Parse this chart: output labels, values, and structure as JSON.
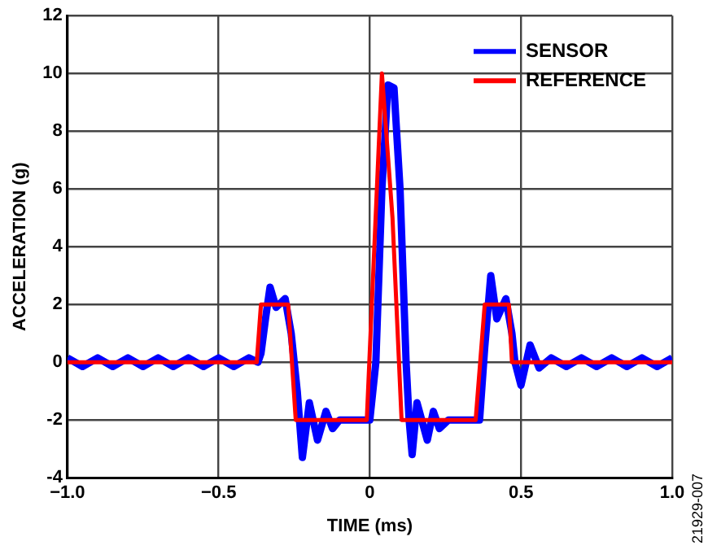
{
  "chart_data": {
    "type": "line",
    "xlabel": "TIME (ms)",
    "ylabel": "ACCELERATION (g)",
    "annotations": [
      "21929-007"
    ],
    "xlim": [
      -1.0,
      1.0
    ],
    "xticks": [
      {
        "value": -1,
        "label": "−1.0"
      },
      {
        "value": -0.5,
        "label": "−0.5"
      },
      0,
      0.5,
      {
        "value": 1,
        "label": "1.0"
      }
    ],
    "ylim": [
      -4,
      12
    ],
    "yticks": [
      -4,
      -2,
      0,
      2,
      4,
      6,
      8,
      10,
      12
    ],
    "grid": true,
    "legend": "top right",
    "marker": "none",
    "line_style": "solid",
    "series": [
      {
        "name": "SENSOR",
        "color": "#0000ff",
        "x": [
          -1,
          -0.95,
          -0.9,
          -0.85,
          -0.8,
          -0.75,
          -0.7,
          -0.65,
          -0.6,
          -0.55,
          -0.5,
          -0.45,
          -0.4,
          -0.37,
          -0.36,
          -0.345,
          -0.33,
          -0.31,
          -0.28,
          -0.26,
          -0.24,
          -0.223,
          -0.2,
          -0.173,
          -0.145,
          -0.123,
          -0.1,
          -0.05,
          0,
          0.02,
          0.04,
          0.06,
          0.08,
          0.1,
          0.12,
          0.13,
          0.14,
          0.156,
          0.19,
          0.21,
          0.23,
          0.26,
          0.3,
          0.35,
          0.363,
          0.38,
          0.4,
          0.42,
          0.45,
          0.47,
          0.48,
          0.5,
          0.53,
          0.56,
          0.6,
          0.65,
          0.7,
          0.75,
          0.8,
          0.85,
          0.9,
          0.95,
          1
        ],
        "values": [
          0.15,
          -0.15,
          0.15,
          -0.15,
          0.15,
          -0.15,
          0.15,
          -0.15,
          0.15,
          -0.15,
          0.15,
          -0.15,
          0.15,
          0,
          0.3,
          1.5,
          2.6,
          1.9,
          2.2,
          1,
          -1,
          -3.3,
          -1.4,
          -2.7,
          -1.7,
          -2.3,
          -2,
          -2,
          -2,
          0,
          6,
          9.6,
          9.5,
          6,
          0,
          -2,
          -3.2,
          -1.4,
          -2.7,
          -1.7,
          -2.3,
          -2,
          -2,
          -2,
          -2,
          0.5,
          3,
          1.5,
          2.2,
          1,
          0,
          -0.8,
          0.6,
          -0.2,
          0.15,
          -0.15,
          0.15,
          -0.15,
          0.15,
          -0.15,
          0.15,
          -0.15,
          0.15
        ]
      },
      {
        "name": "REFERENCE",
        "color": "#ff0000",
        "x": [
          -1,
          -0.9,
          -0.8,
          -0.7,
          -0.6,
          -0.5,
          -0.4,
          -0.374,
          -0.36,
          -0.27,
          -0.245,
          -0.1,
          -0.01,
          0.015,
          0.04,
          0.075,
          0.105,
          0.11,
          0.2,
          0.35,
          0.38,
          0.46,
          0.47,
          0.6,
          0.7,
          0.8,
          0.9,
          1
        ],
        "values": [
          0,
          0,
          0,
          0,
          0,
          0,
          0,
          0,
          2,
          2,
          -2,
          -2,
          -2,
          4,
          10,
          5,
          -2,
          -2,
          -2,
          -2,
          2,
          2,
          0,
          0,
          0,
          0,
          0,
          0
        ]
      }
    ]
  }
}
